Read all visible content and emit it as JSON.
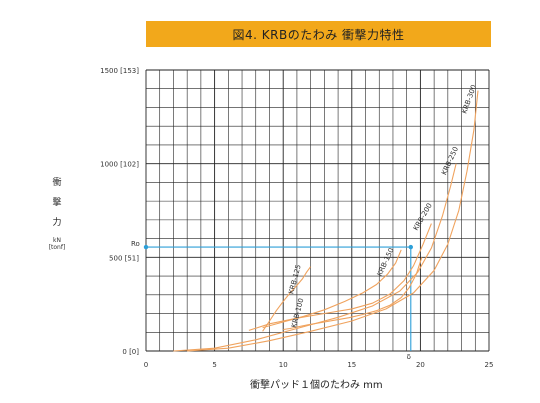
{
  "chart_data": {
    "type": "line",
    "title": "図4. KRBのたわみ 衝撃力特性",
    "xlabel": "衝撃パッド１個のたわみ mm",
    "ylabel_lines": [
      "衝",
      "撃",
      "力"
    ],
    "ylabel_unit": [
      "kN",
      "[tonf]"
    ],
    "xlim": [
      0,
      25
    ],
    "ylim": [
      0,
      1500
    ],
    "x_ticks": [
      0,
      5,
      10,
      15,
      20,
      25
    ],
    "x_tick_labels": [
      "0",
      "5",
      "10",
      "15",
      "20",
      "25"
    ],
    "y_ticks": [
      0,
      500,
      1000,
      1500
    ],
    "y_tick_labels": [
      "0 [0]",
      "500 [51]",
      "1000 [102]",
      "1500 [153]"
    ],
    "grid": true,
    "annotation": {
      "ro_label": "Ro",
      "delta_label": "δ",
      "point": [
        19.3,
        555
      ]
    },
    "series": [
      {
        "name": "KRB-100",
        "x": [
          10,
          10.5,
          11,
          11.8,
          12.8,
          13.8,
          14.8,
          15.8,
          16.8,
          17.8,
          18.6,
          19.2,
          19.7,
          20.1
        ],
        "y": [
          115,
          120,
          128,
          140,
          152,
          165,
          178,
          195,
          215,
          245,
          285,
          340,
          410,
          500
        ]
      },
      {
        "name": "KRB-125",
        "x": [
          8.5,
          9,
          9.5,
          10,
          10.5,
          11,
          11.4,
          11.7,
          12
        ],
        "y": [
          105,
          160,
          215,
          265,
          310,
          350,
          385,
          420,
          450
        ]
      },
      {
        "name": "KRB-150",
        "x": [
          8.5,
          10,
          11.5,
          13,
          14.5,
          15.8,
          16.8,
          17.6,
          18.2,
          18.6
        ],
        "y": [
          125,
          155,
          185,
          220,
          265,
          310,
          355,
          410,
          470,
          540
        ]
      },
      {
        "name": "KRB-200",
        "x": [
          7.5,
          9,
          11,
          13,
          15,
          16.5,
          17.8,
          18.8,
          19.5,
          20.2,
          20.8
        ],
        "y": [
          110,
          145,
          175,
          200,
          225,
          255,
          305,
          375,
          455,
          570,
          680
        ]
      },
      {
        "name": "KRB-250",
        "x": [
          2,
          5,
          8,
          11,
          14,
          16.5,
          18.5,
          19.8,
          20.8,
          21.6,
          22.2,
          22.6
        ],
        "y": [
          0,
          15,
          60,
          120,
          180,
          240,
          320,
          420,
          550,
          720,
          880,
          1000
        ]
      },
      {
        "name": "KRB-300",
        "x": [
          3,
          6,
          9,
          12,
          15,
          17.5,
          19.5,
          21,
          22,
          22.8,
          23.4,
          23.9,
          24.2
        ],
        "y": [
          0,
          15,
          55,
          105,
          160,
          225,
          310,
          430,
          570,
          750,
          960,
          1180,
          1390
        ]
      }
    ],
    "series_color": "#f0a35e",
    "guide_color": "#2d9fd8"
  }
}
